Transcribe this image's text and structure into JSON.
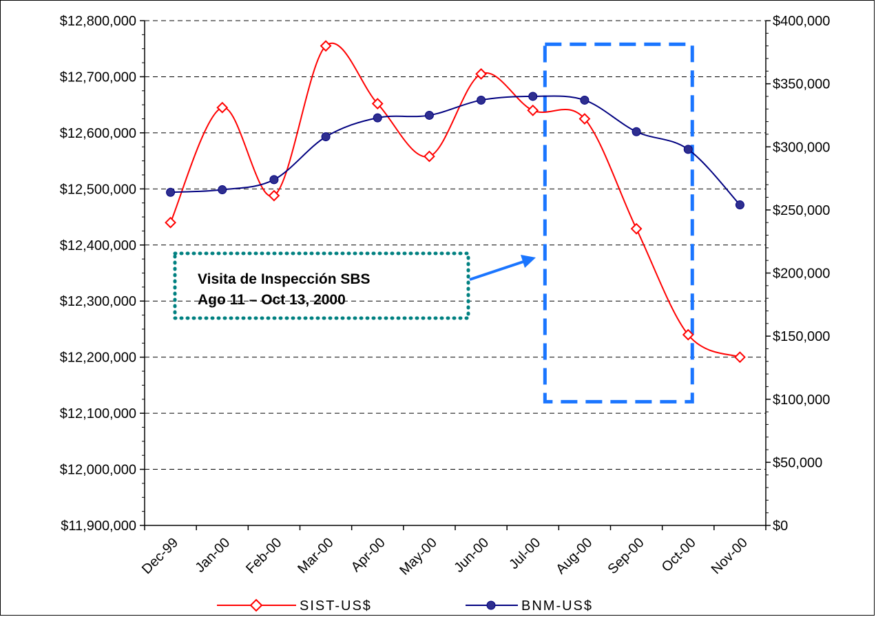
{
  "chart_data": {
    "type": "line",
    "categories": [
      "Dec-99",
      "Jan-00",
      "Feb-00",
      "Mar-00",
      "Apr-00",
      "May-00",
      "Jun-00",
      "Jul-00",
      "Aug-00",
      "Sep-00",
      "Oct-00",
      "Nov-00"
    ],
    "y_left": {
      "min": 11900000,
      "max": 12800000,
      "step": 100000,
      "tick_labels": [
        "$11,900,000",
        "$12,000,000",
        "$12,100,000",
        "$12,200,000",
        "$12,300,000",
        "$12,400,000",
        "$12,500,000",
        "$12,600,000",
        "$12,700,000",
        "$12,800,000"
      ]
    },
    "y_right": {
      "min": 0,
      "max": 400000,
      "step": 50000,
      "tick_labels": [
        "$0",
        "$50,000",
        "$100,000",
        "$150,000",
        "$200,000",
        "$250,000",
        "$300,000",
        "$350,000",
        "$400,000"
      ]
    },
    "series": [
      {
        "name": "SIST-US$",
        "axis": "left",
        "color": "#ff0000",
        "marker": "diamond-open",
        "values": [
          12440000,
          12645000,
          12488000,
          12755000,
          12652000,
          12558000,
          12705000,
          12640000,
          12625000,
          12429000,
          12240000,
          12200000
        ]
      },
      {
        "name": "BNM-US$",
        "axis": "right",
        "color": "#000080",
        "marker": "circle-filled",
        "values": [
          264000,
          266000,
          274000,
          308000,
          323000,
          325000,
          337000,
          340000,
          337000,
          312000,
          298000,
          254000
        ]
      }
    ],
    "grid": "horizontal-dashed",
    "legend": "bottom",
    "annotation": {
      "lines": [
        "Visita de Inspección SBS",
        "Ago 11 – Oct 13, 2000"
      ],
      "highlight_color": "#1a75ff",
      "box_color": "#008080",
      "highlight_start": "Aug-00",
      "highlight_end": "Oct-00"
    }
  }
}
